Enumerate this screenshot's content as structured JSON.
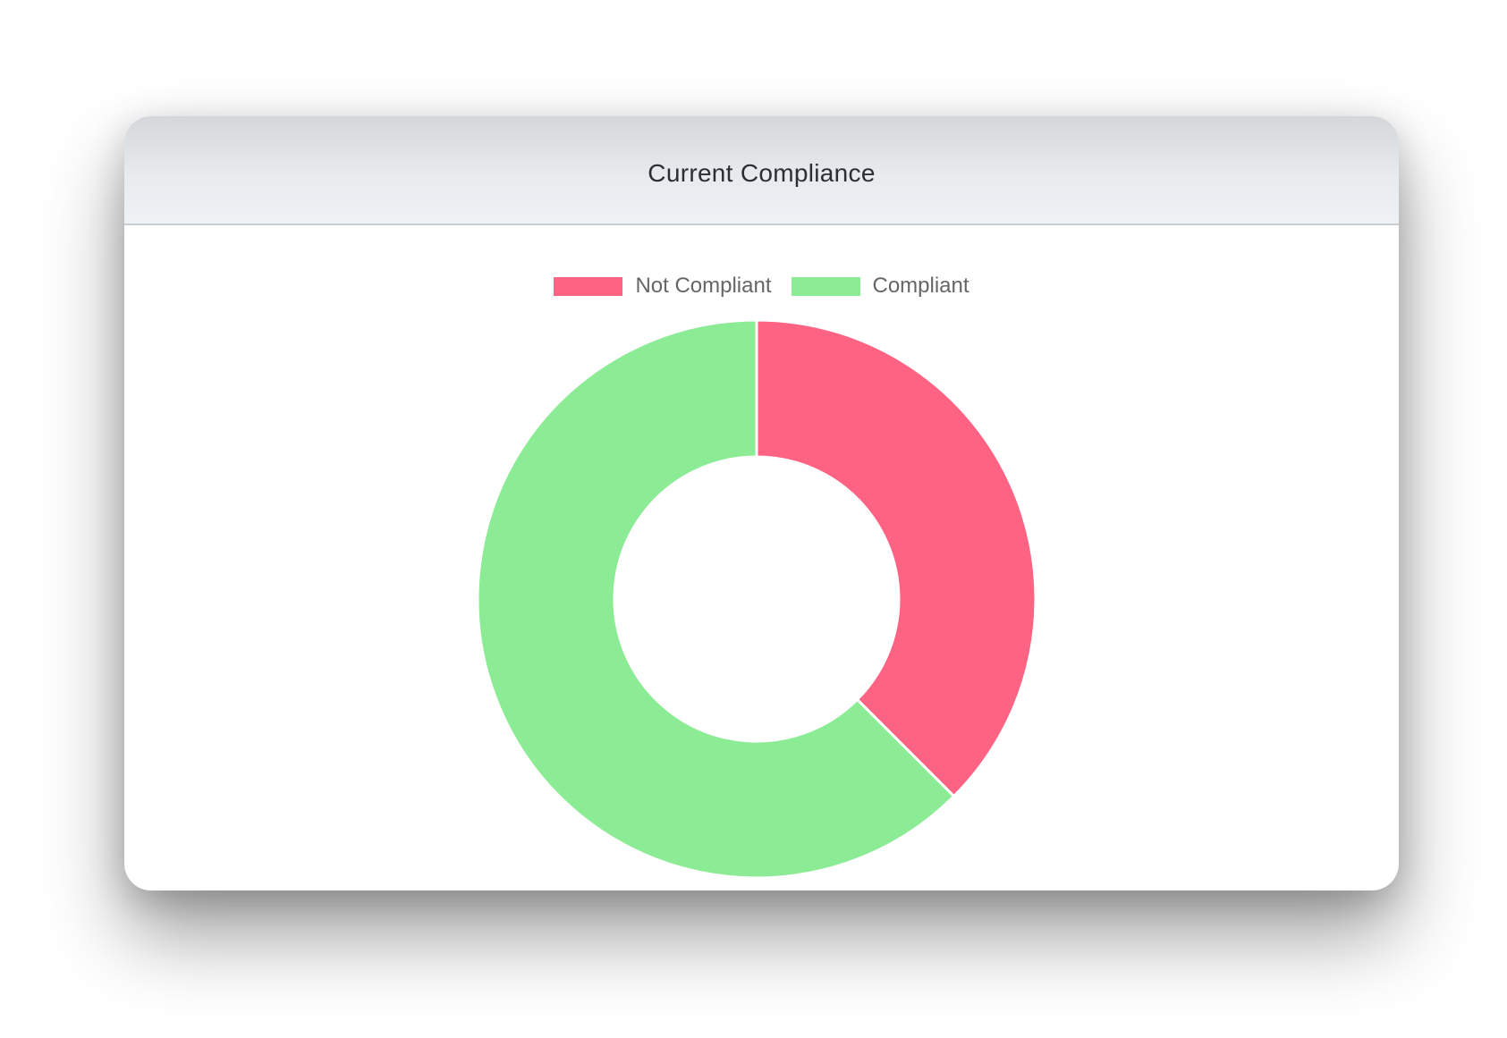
{
  "card": {
    "title": "Current Compliance"
  },
  "chart_data": {
    "type": "pie",
    "variant": "doughnut",
    "categories": [
      "Not Compliant",
      "Compliant"
    ],
    "values": [
      37.5,
      62.5
    ],
    "colors": [
      "#ff6384",
      "#8ceb95"
    ],
    "legend": "top"
  }
}
